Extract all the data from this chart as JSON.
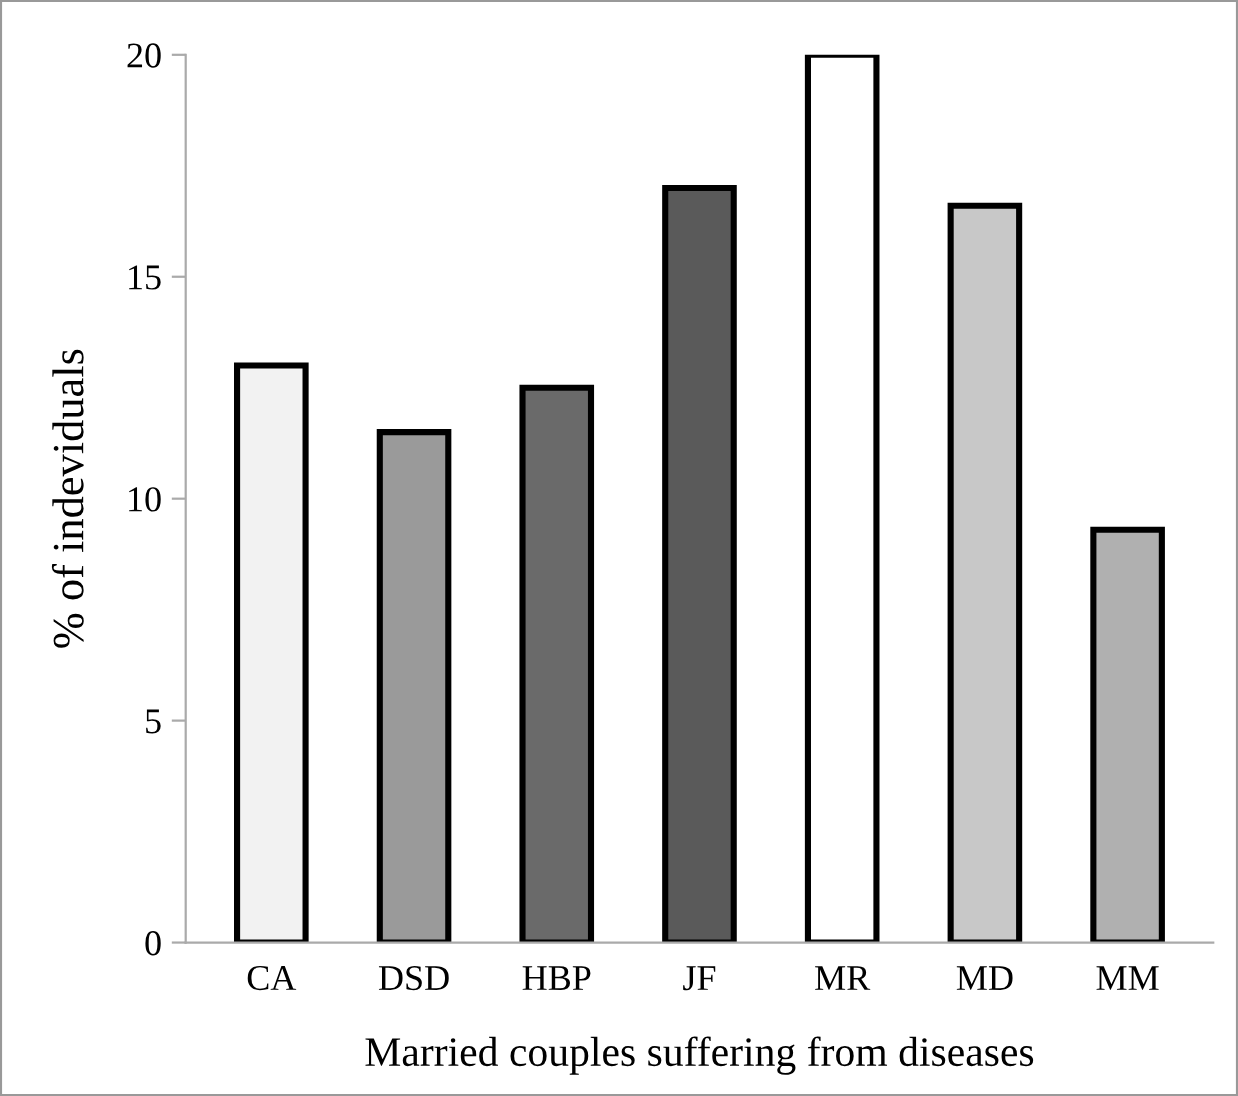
{
  "chart_data": {
    "type": "bar",
    "xlabel": "Married couples suffering from diseases",
    "ylabel": "% of indeviduals",
    "categories": [
      "CA",
      "DSD",
      "HBP",
      "JF",
      "MR",
      "MD",
      "MM"
    ],
    "values": [
      13,
      11.5,
      12.5,
      17,
      20,
      16.6,
      9.3
    ],
    "colors": [
      "#f2f2f2",
      "#9a9a9a",
      "#6a6a6a",
      "#5a5a5a",
      "#ffffff",
      "#c8c8c8",
      "#b0b0b0"
    ],
    "ylim": [
      0,
      20
    ],
    "yticks": [
      0,
      5,
      10,
      15,
      20
    ],
    "grid": false
  }
}
